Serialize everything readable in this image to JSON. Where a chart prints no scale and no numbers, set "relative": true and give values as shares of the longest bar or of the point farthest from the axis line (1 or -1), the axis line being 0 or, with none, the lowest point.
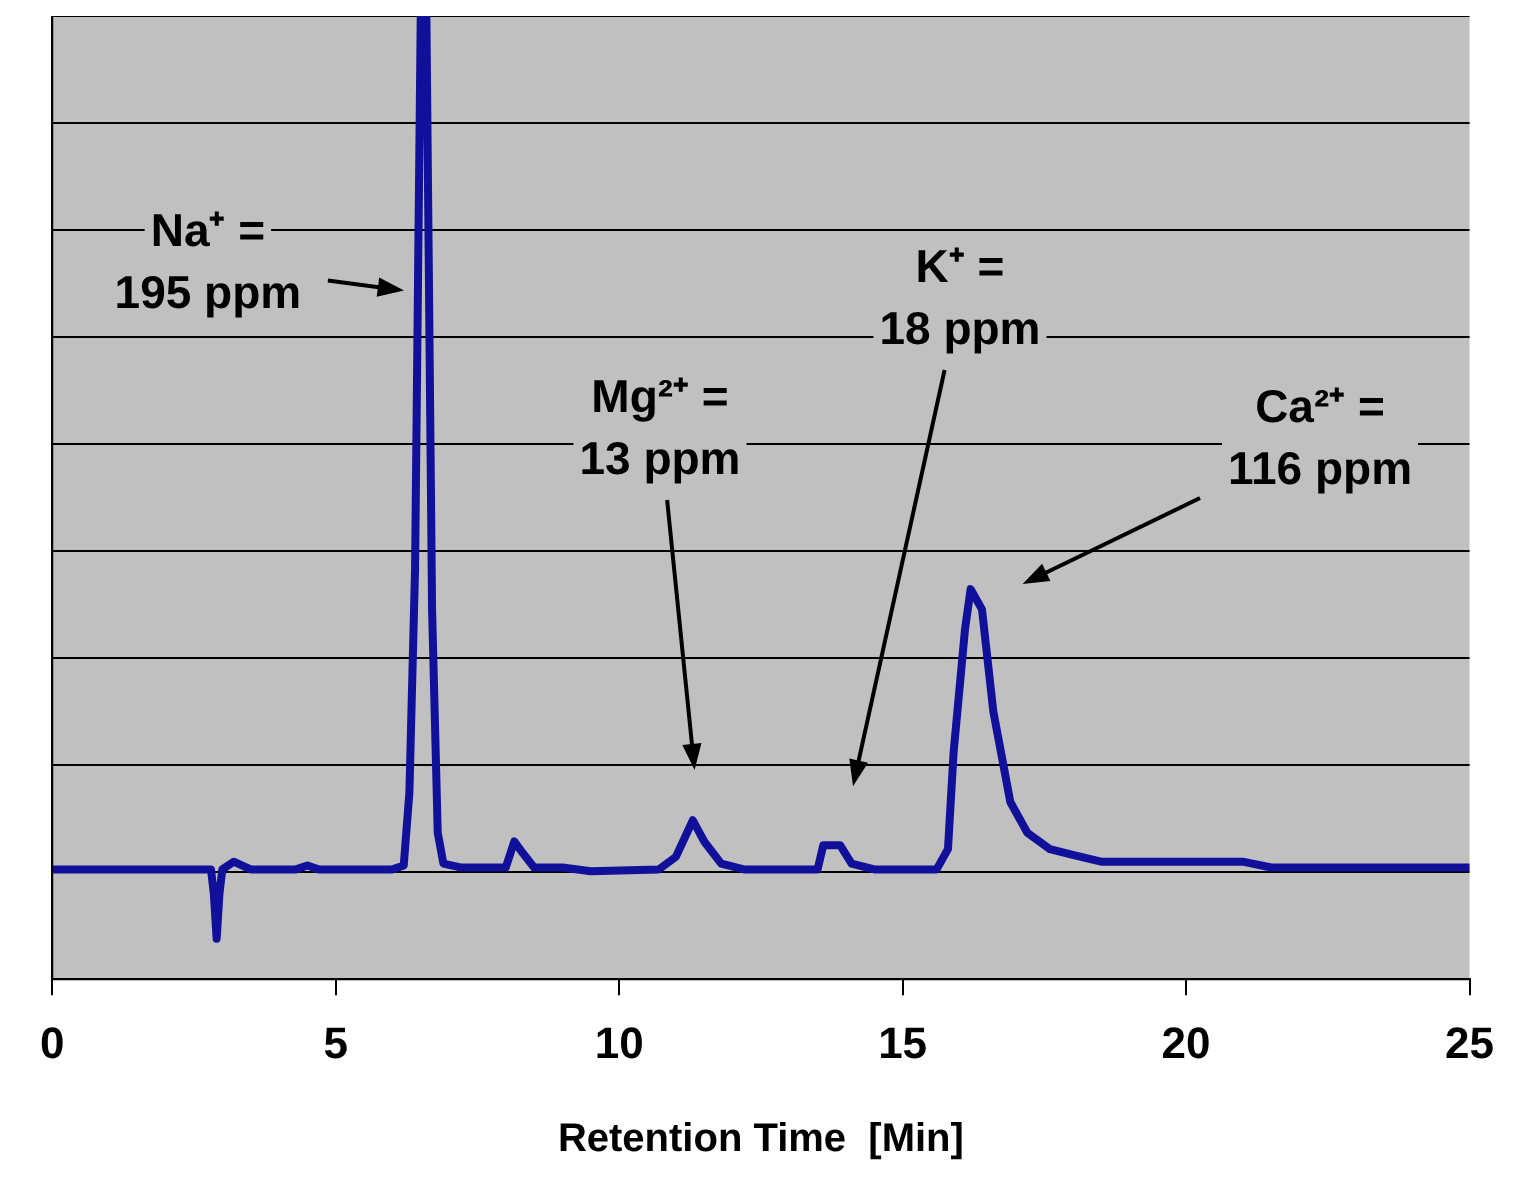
{
  "chart_data": {
    "type": "line",
    "relative": true,
    "xlabel": "Retention Time  [Min]",
    "xlim": [
      0,
      25
    ],
    "xticks": [
      0,
      5,
      10,
      15,
      20,
      25
    ],
    "grid": "y",
    "legend": false,
    "marker": "none",
    "line_style": "solid",
    "series": [
      {
        "color": "#10109a",
        "x": [
          0,
          2.8,
          2.85,
          2.9,
          2.95,
          3.0,
          3.2,
          3.5,
          4.3,
          4.5,
          4.7,
          6.0,
          6.2,
          6.3,
          6.4,
          6.5,
          6.6,
          6.7,
          6.8,
          6.9,
          7.2,
          8.0,
          8.15,
          8.3,
          8.5,
          9.0,
          9.5,
          10.7,
          11.0,
          11.3,
          11.5,
          11.8,
          12.2,
          13.5,
          13.6,
          13.9,
          14.1,
          14.5,
          15.6,
          15.8,
          15.9,
          16.1,
          16.2,
          16.4,
          16.6,
          16.9,
          17.2,
          17.6,
          18.0,
          18.5,
          21.0,
          21.5,
          25
        ],
        "values": [
          0.114,
          0.114,
          0.089,
          0.042,
          0.089,
          0.114,
          0.122,
          0.114,
          0.114,
          0.118,
          0.114,
          0.114,
          0.118,
          0.194,
          0.426,
          1,
          1,
          0.384,
          0.152,
          0.12,
          0.116,
          0.116,
          0.143,
          0.131,
          0.116,
          0.116,
          0.112,
          0.114,
          0.127,
          0.165,
          0.143,
          0.12,
          0.114,
          0.114,
          0.139,
          0.139,
          0.12,
          0.114,
          0.114,
          0.135,
          0.236,
          0.363,
          0.405,
          0.384,
          0.278,
          0.184,
          0.152,
          0.135,
          0.129,
          0.122,
          0.122,
          0.116,
          0.116
        ]
      }
    ],
    "annotations": [
      {
        "text": "Na⁺ = 195 ppm",
        "x": 6.45,
        "y": 0.713
      },
      "Mg²⁺ = 13 ppm",
      "K⁺ = 18 ppm",
      "Ca²⁺ = 116 ppm"
    ]
  }
}
